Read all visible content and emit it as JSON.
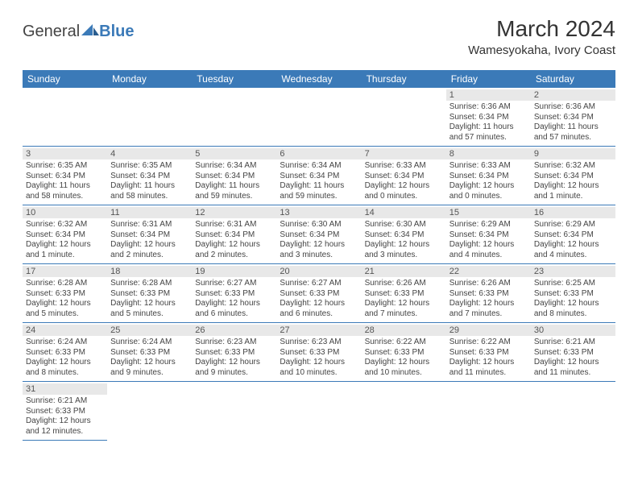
{
  "logo": {
    "brand_a": "General",
    "brand_b": "Blue"
  },
  "title": "March 2024",
  "location": "Wamesyokaha, Ivory Coast",
  "colors": {
    "header_bg": "#3b7ab8",
    "header_fg": "#ffffff",
    "daynum_bg": "#e8e8e8",
    "border": "#3b7ab8",
    "text": "#333333",
    "background": "#ffffff"
  },
  "weekdays": [
    "Sunday",
    "Monday",
    "Tuesday",
    "Wednesday",
    "Thursday",
    "Friday",
    "Saturday"
  ],
  "first_weekday_index": 5,
  "days_in_month": 31,
  "days": {
    "1": {
      "sunrise": "6:36 AM",
      "sunset": "6:34 PM",
      "daylight": "11 hours and 57 minutes."
    },
    "2": {
      "sunrise": "6:36 AM",
      "sunset": "6:34 PM",
      "daylight": "11 hours and 57 minutes."
    },
    "3": {
      "sunrise": "6:35 AM",
      "sunset": "6:34 PM",
      "daylight": "11 hours and 58 minutes."
    },
    "4": {
      "sunrise": "6:35 AM",
      "sunset": "6:34 PM",
      "daylight": "11 hours and 58 minutes."
    },
    "5": {
      "sunrise": "6:34 AM",
      "sunset": "6:34 PM",
      "daylight": "11 hours and 59 minutes."
    },
    "6": {
      "sunrise": "6:34 AM",
      "sunset": "6:34 PM",
      "daylight": "11 hours and 59 minutes."
    },
    "7": {
      "sunrise": "6:33 AM",
      "sunset": "6:34 PM",
      "daylight": "12 hours and 0 minutes."
    },
    "8": {
      "sunrise": "6:33 AM",
      "sunset": "6:34 PM",
      "daylight": "12 hours and 0 minutes."
    },
    "9": {
      "sunrise": "6:32 AM",
      "sunset": "6:34 PM",
      "daylight": "12 hours and 1 minute."
    },
    "10": {
      "sunrise": "6:32 AM",
      "sunset": "6:34 PM",
      "daylight": "12 hours and 1 minute."
    },
    "11": {
      "sunrise": "6:31 AM",
      "sunset": "6:34 PM",
      "daylight": "12 hours and 2 minutes."
    },
    "12": {
      "sunrise": "6:31 AM",
      "sunset": "6:34 PM",
      "daylight": "12 hours and 2 minutes."
    },
    "13": {
      "sunrise": "6:30 AM",
      "sunset": "6:34 PM",
      "daylight": "12 hours and 3 minutes."
    },
    "14": {
      "sunrise": "6:30 AM",
      "sunset": "6:34 PM",
      "daylight": "12 hours and 3 minutes."
    },
    "15": {
      "sunrise": "6:29 AM",
      "sunset": "6:34 PM",
      "daylight": "12 hours and 4 minutes."
    },
    "16": {
      "sunrise": "6:29 AM",
      "sunset": "6:34 PM",
      "daylight": "12 hours and 4 minutes."
    },
    "17": {
      "sunrise": "6:28 AM",
      "sunset": "6:33 PM",
      "daylight": "12 hours and 5 minutes."
    },
    "18": {
      "sunrise": "6:28 AM",
      "sunset": "6:33 PM",
      "daylight": "12 hours and 5 minutes."
    },
    "19": {
      "sunrise": "6:27 AM",
      "sunset": "6:33 PM",
      "daylight": "12 hours and 6 minutes."
    },
    "20": {
      "sunrise": "6:27 AM",
      "sunset": "6:33 PM",
      "daylight": "12 hours and 6 minutes."
    },
    "21": {
      "sunrise": "6:26 AM",
      "sunset": "6:33 PM",
      "daylight": "12 hours and 7 minutes."
    },
    "22": {
      "sunrise": "6:26 AM",
      "sunset": "6:33 PM",
      "daylight": "12 hours and 7 minutes."
    },
    "23": {
      "sunrise": "6:25 AM",
      "sunset": "6:33 PM",
      "daylight": "12 hours and 8 minutes."
    },
    "24": {
      "sunrise": "6:24 AM",
      "sunset": "6:33 PM",
      "daylight": "12 hours and 8 minutes."
    },
    "25": {
      "sunrise": "6:24 AM",
      "sunset": "6:33 PM",
      "daylight": "12 hours and 9 minutes."
    },
    "26": {
      "sunrise": "6:23 AM",
      "sunset": "6:33 PM",
      "daylight": "12 hours and 9 minutes."
    },
    "27": {
      "sunrise": "6:23 AM",
      "sunset": "6:33 PM",
      "daylight": "12 hours and 10 minutes."
    },
    "28": {
      "sunrise": "6:22 AM",
      "sunset": "6:33 PM",
      "daylight": "12 hours and 10 minutes."
    },
    "29": {
      "sunrise": "6:22 AM",
      "sunset": "6:33 PM",
      "daylight": "12 hours and 11 minutes."
    },
    "30": {
      "sunrise": "6:21 AM",
      "sunset": "6:33 PM",
      "daylight": "12 hours and 11 minutes."
    },
    "31": {
      "sunrise": "6:21 AM",
      "sunset": "6:33 PM",
      "daylight": "12 hours and 12 minutes."
    }
  },
  "labels": {
    "sunrise_prefix": "Sunrise: ",
    "sunset_prefix": "Sunset: ",
    "daylight_prefix": "Daylight: "
  }
}
